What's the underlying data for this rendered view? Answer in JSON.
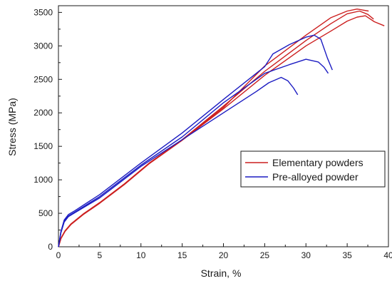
{
  "chart_data": {
    "type": "line",
    "title": "",
    "xlabel": "Strain, %",
    "ylabel": "Stress (MPa)",
    "xlim": [
      0,
      40
    ],
    "ylim": [
      0,
      3600
    ],
    "x_ticks": [
      0,
      5,
      10,
      15,
      20,
      25,
      30,
      35,
      40
    ],
    "y_ticks": [
      0,
      500,
      1000,
      1500,
      2000,
      2500,
      3000,
      3500
    ],
    "grid": false,
    "legend_position": "right",
    "legend": [
      {
        "label": "Elementary powders",
        "color": "#cc1f1f"
      },
      {
        "label": "Pre-alloyed powder",
        "color": "#1c1cc2"
      }
    ],
    "series": [
      {
        "group": "Elementary powders",
        "color": "#cc1f1f",
        "points": [
          [
            0,
            0
          ],
          [
            0.3,
            120
          ],
          [
            0.8,
            230
          ],
          [
            1.5,
            330
          ],
          [
            3,
            480
          ],
          [
            5,
            650
          ],
          [
            8,
            930
          ],
          [
            11,
            1240
          ],
          [
            15,
            1590
          ],
          [
            20,
            2060
          ],
          [
            25,
            2560
          ],
          [
            30,
            3000
          ],
          [
            33,
            3220
          ],
          [
            35,
            3370
          ],
          [
            36.2,
            3430
          ],
          [
            37.2,
            3450
          ],
          [
            38.3,
            3360
          ],
          [
            39.5,
            3300
          ]
        ]
      },
      {
        "group": "Elementary powders",
        "color": "#cc1f1f",
        "points": [
          [
            0,
            0
          ],
          [
            0.3,
            130
          ],
          [
            0.8,
            240
          ],
          [
            1.5,
            340
          ],
          [
            3,
            490
          ],
          [
            5,
            660
          ],
          [
            8,
            940
          ],
          [
            11,
            1250
          ],
          [
            15,
            1600
          ],
          [
            20,
            2100
          ],
          [
            25,
            2620
          ],
          [
            30,
            3080
          ],
          [
            33,
            3330
          ],
          [
            35,
            3480
          ],
          [
            36.5,
            3520
          ],
          [
            37.5,
            3470
          ],
          [
            38.2,
            3400
          ]
        ]
      },
      {
        "group": "Elementary powders",
        "color": "#cc1f1f",
        "points": [
          [
            0,
            0
          ],
          [
            0.3,
            125
          ],
          [
            0.8,
            235
          ],
          [
            1.5,
            335
          ],
          [
            3,
            485
          ],
          [
            5,
            655
          ],
          [
            8,
            935
          ],
          [
            11,
            1245
          ],
          [
            15,
            1595
          ],
          [
            20,
            2080
          ],
          [
            25,
            2700
          ],
          [
            30,
            3160
          ],
          [
            33,
            3420
          ],
          [
            35,
            3520
          ],
          [
            36.2,
            3550
          ],
          [
            37.6,
            3520
          ]
        ]
      },
      {
        "group": "Pre-alloyed powder",
        "color": "#1c1cc2",
        "points": [
          [
            0,
            0
          ],
          [
            0.3,
            230
          ],
          [
            0.7,
            400
          ],
          [
            1.2,
            480
          ],
          [
            2,
            540
          ],
          [
            5,
            780
          ],
          [
            10,
            1250
          ],
          [
            15,
            1700
          ],
          [
            20,
            2200
          ],
          [
            25,
            2690
          ],
          [
            26,
            2880
          ],
          [
            28,
            3020
          ],
          [
            30,
            3130
          ],
          [
            31,
            3160
          ],
          [
            31.8,
            3100
          ],
          [
            32.6,
            2820
          ],
          [
            33.2,
            2640
          ]
        ]
      },
      {
        "group": "Pre-alloyed powder",
        "color": "#1c1cc2",
        "points": [
          [
            0,
            0
          ],
          [
            0.3,
            220
          ],
          [
            0.7,
            380
          ],
          [
            1.2,
            460
          ],
          [
            2,
            520
          ],
          [
            5,
            750
          ],
          [
            10,
            1220
          ],
          [
            15,
            1640
          ],
          [
            20,
            2150
          ],
          [
            25,
            2590
          ],
          [
            28,
            2720
          ],
          [
            30,
            2800
          ],
          [
            31.5,
            2760
          ],
          [
            32.2,
            2680
          ],
          [
            32.7,
            2590
          ]
        ]
      },
      {
        "group": "Pre-alloyed powder",
        "color": "#1c1cc2",
        "points": [
          [
            0,
            0
          ],
          [
            0.3,
            210
          ],
          [
            0.7,
            370
          ],
          [
            1.2,
            450
          ],
          [
            2,
            510
          ],
          [
            5,
            730
          ],
          [
            10,
            1200
          ],
          [
            15,
            1600
          ],
          [
            20,
            2000
          ],
          [
            24,
            2320
          ],
          [
            25.5,
            2450
          ],
          [
            27,
            2530
          ],
          [
            27.8,
            2480
          ],
          [
            28.5,
            2370
          ],
          [
            29,
            2270
          ]
        ]
      }
    ]
  }
}
